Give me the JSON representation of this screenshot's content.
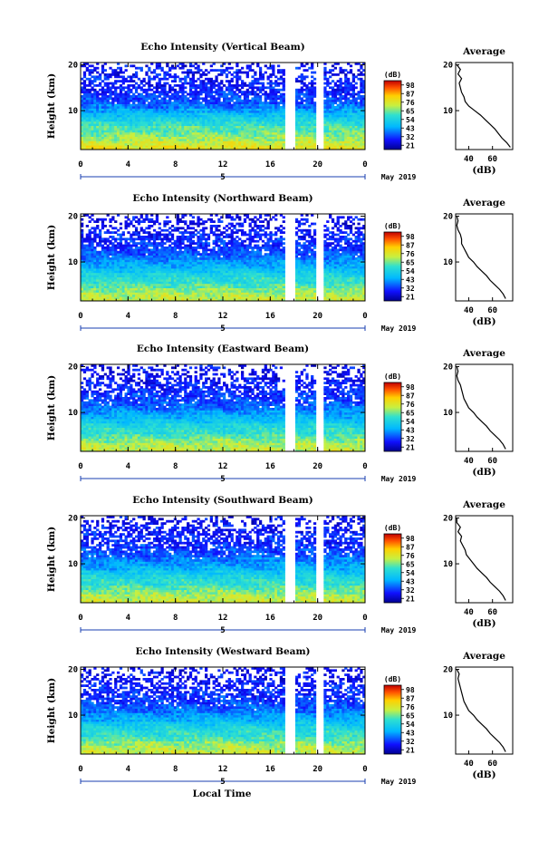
{
  "figure": {
    "xlabel": "Local Time",
    "date_label": "May 2019",
    "day_label": "5",
    "avg_title": "Average",
    "cbar_unit": "(dB)",
    "ylabel": "Height (km)",
    "avg_xlabel": "(dB)"
  },
  "colorbar_ticks": [
    "21",
    "32",
    "43",
    "54",
    "65",
    "76",
    "87",
    "98"
  ],
  "chart_data": [
    {
      "type": "heatmap",
      "title": "Echo Intensity (Vertical Beam)",
      "xlabel": "Local Time",
      "ylabel": "Height (km)",
      "x_ticks": [
        "0",
        "4",
        "8",
        "12",
        "16",
        "20",
        "0"
      ],
      "y_ticks": [
        "10",
        "20"
      ],
      "xlim": [
        0,
        24
      ],
      "ylim": [
        1.5,
        20.5
      ],
      "colorbar": {
        "label": "(dB)",
        "range": [
          21,
          98
        ]
      },
      "data_gaps_hours": [
        [
          5.8,
          5.95
        ],
        [
          17.2,
          18.0
        ],
        [
          19.9,
          20.6
        ]
      ],
      "profile": {
        "title": "Average",
        "xlabel": "(dB)",
        "x_ticks": [
          "40",
          "60"
        ],
        "height_km": [
          2,
          3,
          4,
          5,
          6,
          7,
          8,
          9,
          10,
          11,
          12,
          13,
          14,
          15,
          16,
          17,
          18,
          19,
          20
        ],
        "mean_db": [
          75,
          72,
          68,
          65,
          62,
          58,
          54,
          50,
          45,
          40,
          37,
          36,
          34,
          33,
          32,
          34,
          31,
          33,
          30
        ]
      }
    },
    {
      "type": "heatmap",
      "title": "Echo Intensity (Northward Beam)",
      "xlabel": "Local Time",
      "ylabel": "Height (km)",
      "x_ticks": [
        "0",
        "4",
        "8",
        "12",
        "16",
        "20",
        "0"
      ],
      "y_ticks": [
        "10",
        "20"
      ],
      "xlim": [
        0,
        24
      ],
      "ylim": [
        1.5,
        20.5
      ],
      "colorbar": {
        "label": "(dB)",
        "range": [
          21,
          98
        ]
      },
      "data_gaps_hours": [
        [
          5.8,
          5.95
        ],
        [
          17.2,
          18.0
        ],
        [
          19.9,
          20.6
        ]
      ],
      "profile": {
        "title": "Average",
        "xlabel": "(dB)",
        "x_ticks": [
          "40",
          "60"
        ],
        "height_km": [
          2,
          3,
          4,
          5,
          6,
          7,
          8,
          9,
          10,
          11,
          12,
          13,
          14,
          15,
          16,
          17,
          18,
          19,
          20
        ],
        "mean_db": [
          71,
          69,
          66,
          62,
          58,
          55,
          51,
          47,
          44,
          40,
          38,
          36,
          34,
          34,
          33,
          31,
          30,
          31,
          30
        ]
      }
    },
    {
      "type": "heatmap",
      "title": "Echo Intensity (Eastward Beam)",
      "xlabel": "Local Time",
      "ylabel": "Height (km)",
      "x_ticks": [
        "0",
        "4",
        "8",
        "12",
        "16",
        "20",
        "0"
      ],
      "y_ticks": [
        "10",
        "20"
      ],
      "xlim": [
        0,
        24
      ],
      "ylim": [
        1.5,
        20.5
      ],
      "colorbar": {
        "label": "(dB)",
        "range": [
          21,
          98
        ]
      },
      "data_gaps_hours": [
        [
          5.8,
          5.95
        ],
        [
          17.2,
          18.0
        ],
        [
          19.9,
          20.6
        ]
      ],
      "profile": {
        "title": "Average",
        "xlabel": "(dB)",
        "x_ticks": [
          "40",
          "60"
        ],
        "height_km": [
          2,
          3,
          4,
          5,
          6,
          7,
          8,
          9,
          10,
          11,
          12,
          13,
          14,
          15,
          16,
          17,
          18,
          19,
          20
        ],
        "mean_db": [
          71,
          69,
          66,
          62,
          58,
          55,
          51,
          47,
          44,
          40,
          38,
          36,
          35,
          34,
          33,
          31,
          30,
          31,
          30
        ]
      }
    },
    {
      "type": "heatmap",
      "title": "Echo Intensity (Southward Beam)",
      "xlabel": "Local Time",
      "ylabel": "Height (km)",
      "x_ticks": [
        "0",
        "4",
        "8",
        "12",
        "16",
        "20",
        "0"
      ],
      "y_ticks": [
        "10",
        "20"
      ],
      "xlim": [
        0,
        24
      ],
      "ylim": [
        1.5,
        20.5
      ],
      "colorbar": {
        "label": "(dB)",
        "range": [
          21,
          98
        ]
      },
      "data_gaps_hours": [
        [
          5.8,
          5.95
        ],
        [
          17.2,
          18.0
        ],
        [
          19.9,
          20.6
        ]
      ],
      "profile": {
        "title": "Average",
        "xlabel": "(dB)",
        "x_ticks": [
          "40",
          "60"
        ],
        "height_km": [
          2,
          3,
          4,
          5,
          6,
          7,
          8,
          9,
          10,
          11,
          12,
          13,
          14,
          15,
          16,
          17,
          18,
          19,
          20
        ],
        "mean_db": [
          71,
          69,
          66,
          62,
          58,
          55,
          51,
          47,
          44,
          41,
          38,
          37,
          35,
          33,
          34,
          31,
          33,
          30,
          30
        ]
      }
    },
    {
      "type": "heatmap",
      "title": "Echo Intensity (Westward Beam)",
      "xlabel": "Local Time",
      "ylabel": "Height (km)",
      "x_ticks": [
        "0",
        "4",
        "8",
        "12",
        "16",
        "20",
        "0"
      ],
      "y_ticks": [
        "10",
        "20"
      ],
      "xlim": [
        0,
        24
      ],
      "ylim": [
        1.5,
        20.5
      ],
      "colorbar": {
        "label": "(dB)",
        "range": [
          21,
          98
        ]
      },
      "data_gaps_hours": [
        [
          5.8,
          5.95
        ],
        [
          17.2,
          18.0
        ],
        [
          19.9,
          20.6
        ]
      ],
      "profile": {
        "title": "Average",
        "xlabel": "(dB)",
        "x_ticks": [
          "40",
          "60"
        ],
        "height_km": [
          2,
          3,
          4,
          5,
          6,
          7,
          8,
          9,
          10,
          11,
          12,
          13,
          14,
          15,
          16,
          17,
          18,
          19,
          20
        ],
        "mean_db": [
          71,
          69,
          66,
          62,
          58,
          55,
          51,
          47,
          44,
          40,
          38,
          36,
          35,
          34,
          33,
          32,
          31,
          32,
          30
        ]
      }
    }
  ]
}
